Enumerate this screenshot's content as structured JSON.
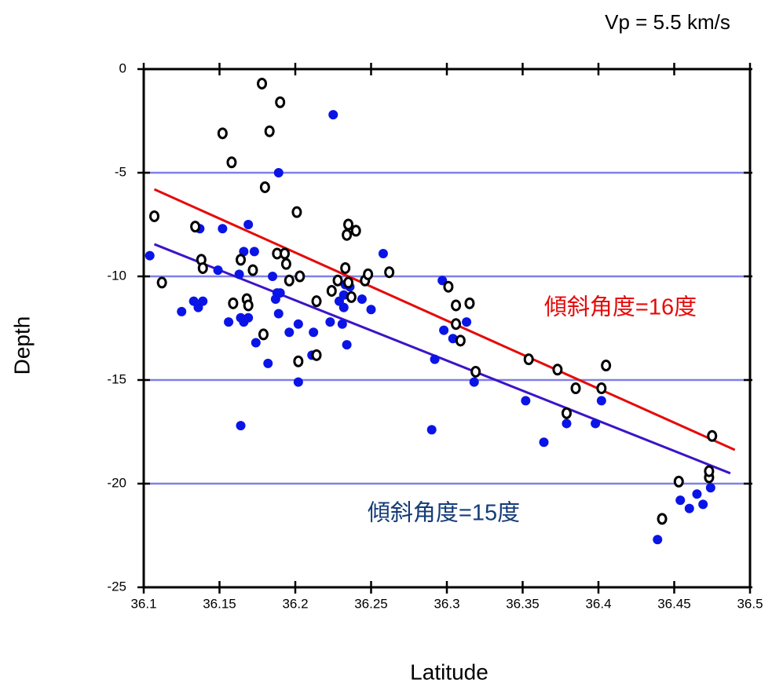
{
  "chart_data": {
    "type": "scatter",
    "title": "Vp = 5.5 km/s",
    "xlabel": "Latitude",
    "ylabel": "Depth",
    "xlim": [
      36.1,
      36.5
    ],
    "ylim": [
      -25,
      0
    ],
    "xticks": [
      36.1,
      36.15,
      36.2,
      36.25,
      36.3,
      36.35,
      36.4,
      36.45,
      36.5
    ],
    "yticks": [
      0,
      -5,
      -10,
      -15,
      -20,
      -25
    ],
    "grid": true,
    "grid_color": "#8080e6",
    "series": [
      {
        "color": "#0a14e6",
        "marker": "filled",
        "x": [
          36.104,
          36.125,
          36.133,
          36.136,
          36.139,
          36.137,
          36.149,
          36.152,
          36.156,
          36.163,
          36.164,
          36.164,
          36.166,
          36.166,
          36.169,
          36.169,
          36.173,
          36.174,
          36.182,
          36.185,
          36.187,
          36.188,
          36.189,
          36.19,
          36.189,
          36.196,
          36.202,
          36.202,
          36.211,
          36.212,
          36.223,
          36.225,
          36.229,
          36.231,
          36.232,
          36.232,
          36.233,
          36.234,
          36.236,
          36.244,
          36.25,
          36.258,
          36.292,
          36.29,
          36.297,
          36.298,
          36.304,
          36.313,
          36.318,
          36.352,
          36.364,
          36.379,
          36.398,
          36.402,
          36.439,
          36.454,
          36.46,
          36.465,
          36.469,
          36.474
        ],
        "values": [
          -9.0,
          -11.7,
          -11.2,
          -11.5,
          -11.2,
          -7.7,
          -9.7,
          -7.7,
          -12.2,
          -9.9,
          -17.2,
          -12.0,
          -12.2,
          -8.8,
          -7.5,
          -12.0,
          -8.8,
          -13.2,
          -14.2,
          -10.0,
          -11.1,
          -10.8,
          -11.8,
          -10.8,
          -5.0,
          -12.7,
          -12.3,
          -15.1,
          -13.8,
          -12.7,
          -12.2,
          -2.2,
          -11.2,
          -12.3,
          -11.5,
          -10.9,
          -10.4,
          -13.3,
          -10.5,
          -11.1,
          -11.6,
          -8.9,
          -14.0,
          -17.4,
          -10.2,
          -12.6,
          -13.0,
          -12.2,
          -15.1,
          -16.0,
          -18.0,
          -17.1,
          -17.1,
          -16.0,
          -22.7,
          -20.8,
          -21.2,
          -20.5,
          -21.0,
          -20.2
        ]
      },
      {
        "color": "#000000",
        "marker": "open",
        "x": [
          36.107,
          36.112,
          36.134,
          36.138,
          36.139,
          36.152,
          36.158,
          36.159,
          36.164,
          36.168,
          36.169,
          36.172,
          36.179,
          36.178,
          36.18,
          36.183,
          36.188,
          36.19,
          36.193,
          36.194,
          36.196,
          36.201,
          36.203,
          36.202,
          36.214,
          36.214,
          36.224,
          36.228,
          36.233,
          36.235,
          36.234,
          36.237,
          36.24,
          36.235,
          36.246,
          36.248,
          36.262,
          36.301,
          36.306,
          36.306,
          36.309,
          36.315,
          36.319,
          36.354,
          36.373,
          36.379,
          36.385,
          36.405,
          36.402,
          36.453,
          36.442,
          36.473,
          36.473,
          36.475
        ],
        "values": [
          -7.1,
          -10.3,
          -7.6,
          -9.2,
          -9.6,
          -3.1,
          -4.5,
          -11.3,
          -9.2,
          -11.1,
          -11.4,
          -9.7,
          -12.8,
          -0.7,
          -5.7,
          -3.0,
          -8.9,
          -1.6,
          -8.9,
          -9.4,
          -10.2,
          -6.9,
          -10.0,
          -14.1,
          -13.8,
          -11.2,
          -10.7,
          -10.2,
          -9.6,
          -7.5,
          -8.0,
          -11.0,
          -7.8,
          -10.3,
          -10.2,
          -9.9,
          -9.8,
          -10.5,
          -11.4,
          -12.3,
          -13.1,
          -11.3,
          -14.6,
          -14.0,
          -14.5,
          -16.6,
          -15.4,
          -14.3,
          -15.4,
          -19.9,
          -21.7,
          -19.7,
          -19.4,
          -17.7
        ]
      }
    ],
    "fit_lines": [
      {
        "color": "#e60a0a",
        "x": [
          36.107,
          36.49
        ],
        "values": [
          -5.8,
          -18.37
        ]
      },
      {
        "color": "#3c14c8",
        "x": [
          36.107,
          36.487
        ],
        "values": [
          -8.45,
          -19.5
        ]
      }
    ],
    "annotations": [
      {
        "text": "傾斜角度=16度",
        "color": "#e60a0a"
      },
      {
        "text": "傾斜角度=15度",
        "color": "#143c78"
      }
    ]
  }
}
